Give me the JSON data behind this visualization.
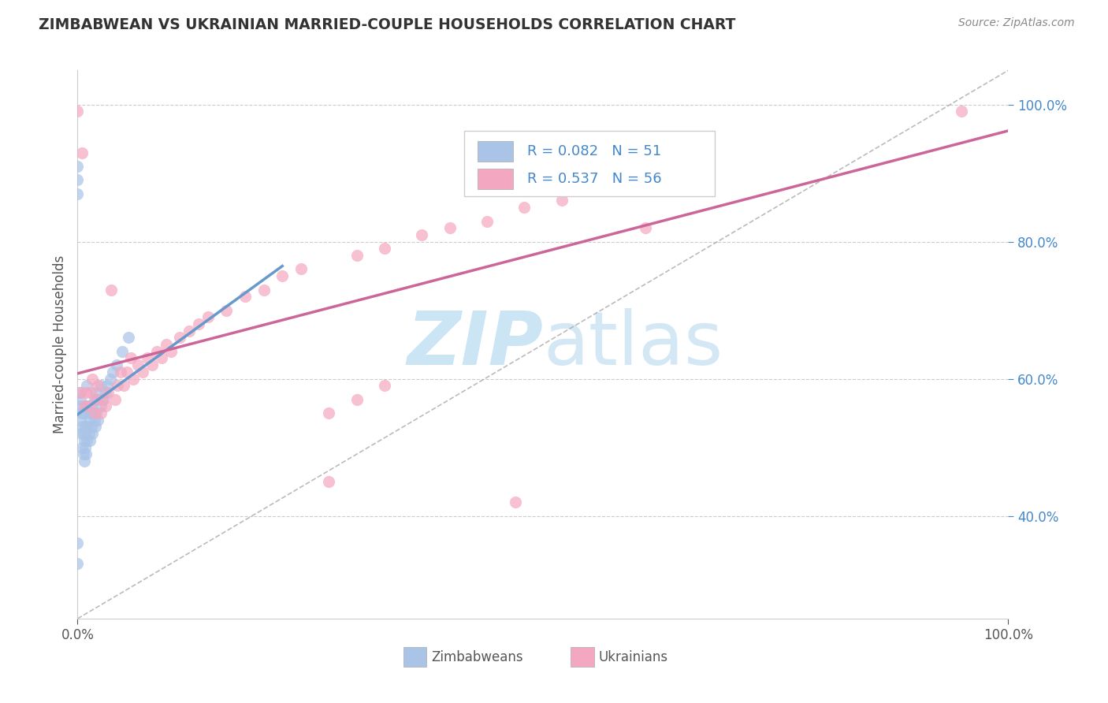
{
  "title": "ZIMBABWEAN VS UKRAINIAN MARRIED-COUPLE HOUSEHOLDS CORRELATION CHART",
  "source": "Source: ZipAtlas.com",
  "ylabel": "Married-couple Households",
  "zim_R": 0.082,
  "zim_N": 51,
  "ukr_R": 0.537,
  "ukr_N": 56,
  "zim_color": "#aac4e8",
  "ukr_color": "#f4a7c0",
  "zim_line_color": "#6699cc",
  "ukr_line_color": "#cc6699",
  "watermark_color": "#cce5f5",
  "background_color": "#ffffff",
  "grid_color": "#cccccc",
  "legend_text_color": "#4488cc",
  "right_tick_color": "#4488cc",
  "zim_x": [
    0.0,
    0.0,
    0.0,
    0.0,
    0.0,
    0.002,
    0.002,
    0.003,
    0.003,
    0.004,
    0.004,
    0.005,
    0.005,
    0.006,
    0.006,
    0.006,
    0.007,
    0.007,
    0.008,
    0.008,
    0.009,
    0.009,
    0.01,
    0.01,
    0.01,
    0.01,
    0.012,
    0.012,
    0.013,
    0.013,
    0.015,
    0.015,
    0.016,
    0.016,
    0.018,
    0.018,
    0.019,
    0.02,
    0.02,
    0.022,
    0.022,
    0.025,
    0.025,
    0.028,
    0.03,
    0.032,
    0.035,
    0.038,
    0.042,
    0.048,
    0.055
  ],
  "zim_y": [
    0.33,
    0.36,
    0.87,
    0.89,
    0.91,
    0.56,
    0.58,
    0.54,
    0.57,
    0.52,
    0.55,
    0.5,
    0.53,
    0.49,
    0.52,
    0.55,
    0.48,
    0.51,
    0.5,
    0.53,
    0.49,
    0.52,
    0.51,
    0.53,
    0.56,
    0.59,
    0.52,
    0.55,
    0.51,
    0.54,
    0.53,
    0.56,
    0.52,
    0.55,
    0.54,
    0.57,
    0.53,
    0.55,
    0.58,
    0.54,
    0.57,
    0.56,
    0.59,
    0.57,
    0.58,
    0.59,
    0.6,
    0.61,
    0.62,
    0.64,
    0.66
  ],
  "ukr_x": [
    0.0,
    0.003,
    0.005,
    0.007,
    0.009,
    0.012,
    0.014,
    0.016,
    0.018,
    0.02,
    0.022,
    0.025,
    0.027,
    0.03,
    0.033,
    0.036,
    0.04,
    0.043,
    0.046,
    0.05,
    0.053,
    0.057,
    0.06,
    0.065,
    0.07,
    0.075,
    0.08,
    0.085,
    0.09,
    0.095,
    0.1,
    0.11,
    0.12,
    0.13,
    0.14,
    0.16,
    0.18,
    0.2,
    0.22,
    0.24,
    0.27,
    0.3,
    0.33,
    0.37,
    0.4,
    0.44,
    0.48,
    0.52,
    0.57,
    0.63,
    0.27,
    0.3,
    0.33,
    0.47,
    0.61,
    0.95
  ],
  "ukr_y": [
    0.99,
    0.58,
    0.93,
    0.56,
    0.58,
    0.56,
    0.58,
    0.6,
    0.55,
    0.57,
    0.59,
    0.55,
    0.57,
    0.56,
    0.58,
    0.73,
    0.57,
    0.59,
    0.61,
    0.59,
    0.61,
    0.63,
    0.6,
    0.62,
    0.61,
    0.63,
    0.62,
    0.64,
    0.63,
    0.65,
    0.64,
    0.66,
    0.67,
    0.68,
    0.69,
    0.7,
    0.72,
    0.73,
    0.75,
    0.76,
    0.45,
    0.78,
    0.79,
    0.81,
    0.82,
    0.83,
    0.85,
    0.86,
    0.88,
    0.89,
    0.55,
    0.57,
    0.59,
    0.42,
    0.82,
    0.99
  ],
  "xlim": [
    0,
    1.0
  ],
  "ylim": [
    0.25,
    1.05
  ]
}
